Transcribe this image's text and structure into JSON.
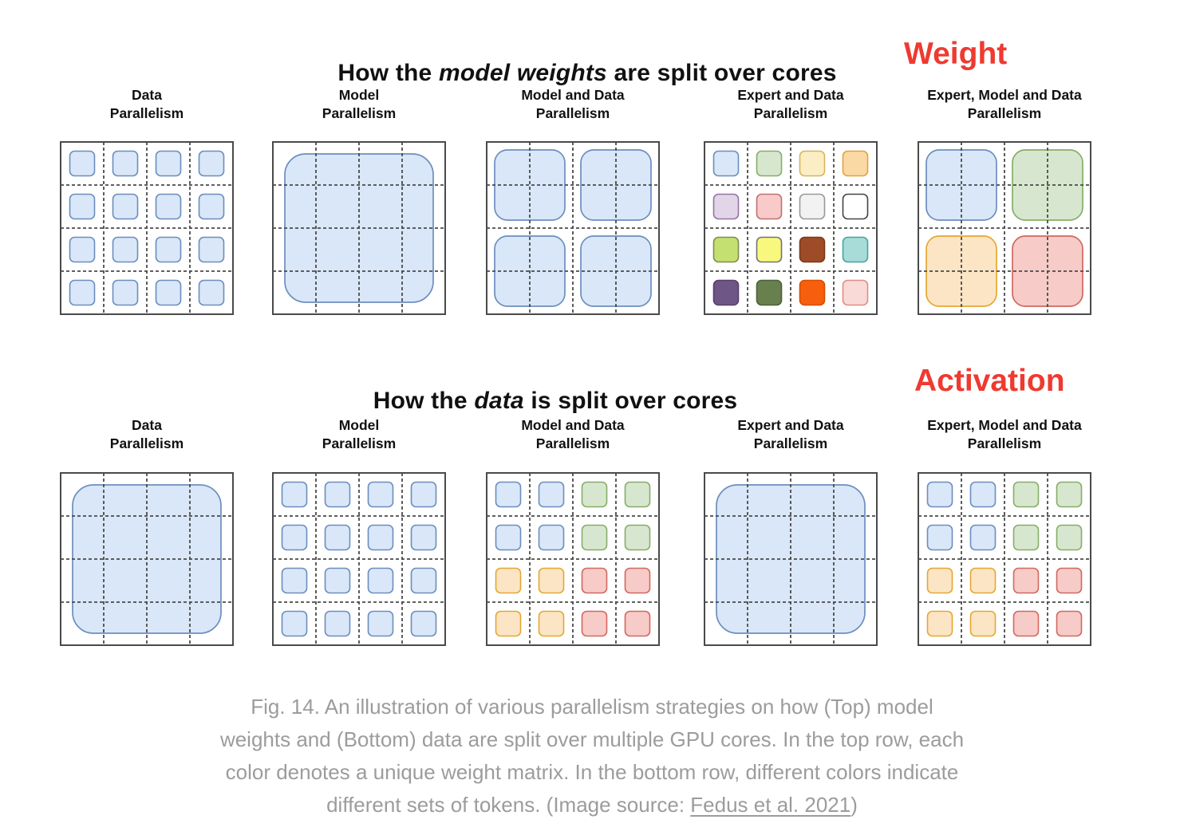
{
  "accent_red": "#ee3a30",
  "panel_border": "#4a4a4a",
  "palette": {
    "blue": {
      "fill": "#d9e7f8",
      "stroke": "#6c8ebf"
    },
    "green": {
      "fill": "#d7e7cf",
      "stroke": "#86ae68"
    },
    "orange": {
      "fill": "#fce5c4",
      "stroke": "#e5a733"
    },
    "red": {
      "fill": "#f6cbc8",
      "stroke": "#d2685e"
    },
    "cream": {
      "fill": "#fbeec5",
      "stroke": "#d6b656"
    },
    "peach": {
      "fill": "#fbd9a5",
      "stroke": "#e2a23d"
    },
    "lavender": {
      "fill": "#e1d5e7",
      "stroke": "#9673a6"
    },
    "pink": {
      "fill": "#f8caca",
      "stroke": "#c27070"
    },
    "lightgray": {
      "fill": "#f2f2f2",
      "stroke": "#999999"
    },
    "white": {
      "fill": "#ffffff",
      "stroke": "#444444"
    },
    "lime": {
      "fill": "#c4e070",
      "stroke": "#7e8e50"
    },
    "yellow": {
      "fill": "#f8f87e",
      "stroke": "#737373"
    },
    "brown": {
      "fill": "#9e4c27",
      "stroke": "#7a3a1d"
    },
    "teal": {
      "fill": "#a7dcd8",
      "stroke": "#46a4a0"
    },
    "darkpurple": {
      "fill": "#6e5687",
      "stroke": "#57406c"
    },
    "olive": {
      "fill": "#68804d",
      "stroke": "#4e6138"
    },
    "vividorange": {
      "fill": "#f75f0d",
      "stroke": "#d54e00"
    },
    "lightpink": {
      "fill": "#f9dad6",
      "stroke": "#e48b84"
    }
  },
  "top_section": {
    "title": {
      "prefix": "How the ",
      "emph": "model weights",
      "suffix": " are split over cores"
    },
    "side_label": "Weight",
    "columns": [
      {
        "id": "data-parallelism",
        "label": [
          "Data",
          "Parallelism"
        ],
        "panel": {
          "type": "small16",
          "cells": [
            "blue",
            "blue",
            "blue",
            "blue",
            "blue",
            "blue",
            "blue",
            "blue",
            "blue",
            "blue",
            "blue",
            "blue",
            "blue",
            "blue",
            "blue",
            "blue"
          ]
        }
      },
      {
        "id": "model-parallelism",
        "label": [
          "Model",
          "Parallelism"
        ],
        "panel": {
          "type": "big1",
          "cells": [
            "blue"
          ]
        }
      },
      {
        "id": "model-and-data-parallelism",
        "label": [
          "Model and Data",
          "Parallelism"
        ],
        "panel": {
          "type": "quad4",
          "cells": [
            "blue",
            "blue",
            "blue",
            "blue"
          ]
        }
      },
      {
        "id": "expert-and-data-parallelism",
        "label": [
          "Expert and Data",
          "Parallelism"
        ],
        "panel": {
          "type": "small16",
          "cells": [
            "blue",
            "green",
            "cream",
            "peach",
            "lavender",
            "pink",
            "lightgray",
            "white",
            "lime",
            "yellow",
            "brown",
            "teal",
            "darkpurple",
            "olive",
            "vividorange",
            "lightpink"
          ]
        }
      },
      {
        "id": "expert-model-and-data-parallelism",
        "label": [
          "Expert, Model and Data",
          "Parallelism"
        ],
        "panel": {
          "type": "quad4",
          "cells": [
            "blue",
            "green",
            "orange",
            "red"
          ]
        }
      }
    ]
  },
  "bottom_section": {
    "title": {
      "prefix": "How the ",
      "emph": "data",
      "suffix": " is split over cores"
    },
    "side_label": "Activation",
    "columns": [
      {
        "id": "data-parallelism",
        "label": [
          "Data",
          "Parallelism"
        ],
        "panel": {
          "type": "big1",
          "cells": [
            "blue"
          ]
        }
      },
      {
        "id": "model-parallelism",
        "label": [
          "Model",
          "Parallelism"
        ],
        "panel": {
          "type": "small16",
          "cells": [
            "blue",
            "blue",
            "blue",
            "blue",
            "blue",
            "blue",
            "blue",
            "blue",
            "blue",
            "blue",
            "blue",
            "blue",
            "blue",
            "blue",
            "blue",
            "blue"
          ]
        }
      },
      {
        "id": "model-and-data-parallelism",
        "label": [
          "Model and Data",
          "Parallelism"
        ],
        "panel": {
          "type": "small16",
          "cells": [
            "blue",
            "blue",
            "green",
            "green",
            "blue",
            "blue",
            "green",
            "green",
            "orange",
            "orange",
            "red",
            "red",
            "orange",
            "orange",
            "red",
            "red"
          ]
        }
      },
      {
        "id": "expert-and-data-parallelism",
        "label": [
          "Expert and Data",
          "Parallelism"
        ],
        "panel": {
          "type": "big1",
          "cells": [
            "blue"
          ]
        }
      },
      {
        "id": "expert-model-and-data-parallelism",
        "label": [
          "Expert, Model and Data",
          "Parallelism"
        ],
        "panel": {
          "type": "small16",
          "cells": [
            "blue",
            "blue",
            "green",
            "green",
            "blue",
            "blue",
            "green",
            "green",
            "orange",
            "orange",
            "red",
            "red",
            "orange",
            "orange",
            "red",
            "red"
          ]
        }
      }
    ]
  },
  "caption": {
    "lines": [
      [
        {
          "t": "Fig. 14. An illustration of various parallelism strategies on how (Top) model"
        }
      ],
      [
        {
          "t": "weights and (Bottom) data are split over multiple GPU cores. In the top row, each"
        }
      ],
      [
        {
          "t": "color denotes a unique weight matrix. In the bottom row, different colors indicate"
        }
      ],
      [
        {
          "t": "different sets of tokens. (Image source: "
        },
        {
          "t": "Fedus et al. 2021",
          "link": true
        },
        {
          "t": ")"
        }
      ]
    ]
  }
}
